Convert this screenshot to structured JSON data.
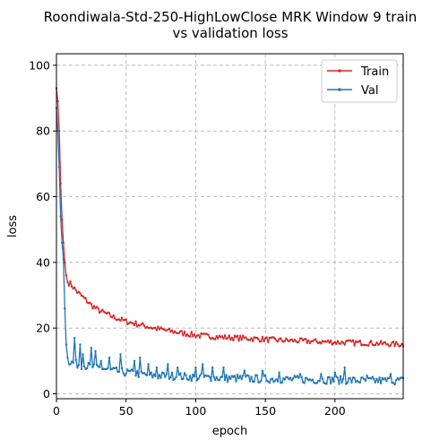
{
  "chart_data": {
    "type": "line",
    "title_line1": "Roondiwala-Std-250-HighLowClose MRK Window 9 train",
    "title_line2": "vs validation loss",
    "xlabel": "epoch",
    "ylabel": "loss",
    "xlim": [
      0,
      249
    ],
    "ylim": [
      -1.5,
      103.5
    ],
    "xticks": [
      0,
      50,
      100,
      150,
      200
    ],
    "yticks": [
      0,
      20,
      40,
      60,
      80,
      100
    ],
    "grid": true,
    "legend_position": "top-right",
    "series": [
      {
        "name": "Train",
        "color": "#d62728",
        "anchors": [
          [
            0,
            93
          ],
          [
            1,
            89
          ],
          [
            2,
            80
          ],
          [
            3,
            64
          ],
          [
            4,
            53
          ],
          [
            5,
            46
          ],
          [
            6,
            40
          ],
          [
            7,
            36
          ],
          [
            8,
            34
          ],
          [
            10,
            33.5
          ],
          [
            15,
            31
          ],
          [
            20,
            29
          ],
          [
            25,
            27
          ],
          [
            30,
            25.5
          ],
          [
            40,
            23.5
          ],
          [
            50,
            22
          ],
          [
            60,
            21
          ],
          [
            70,
            20
          ],
          [
            80,
            19.2
          ],
          [
            90,
            18.5
          ],
          [
            100,
            17.8
          ],
          [
            120,
            17.2
          ],
          [
            140,
            16.8
          ],
          [
            160,
            16.3
          ],
          [
            180,
            16
          ],
          [
            200,
            15.7
          ],
          [
            220,
            15.5
          ],
          [
            249,
            15
          ]
        ],
        "noise": 0.8
      },
      {
        "name": "Val",
        "color": "#1f77b4",
        "anchors": [
          [
            0,
            87
          ],
          [
            1,
            80
          ],
          [
            2,
            69
          ],
          [
            3,
            54
          ],
          [
            4,
            46
          ],
          [
            5,
            41
          ],
          [
            6,
            26
          ],
          [
            7,
            15
          ],
          [
            8,
            11
          ],
          [
            9,
            10
          ],
          [
            10,
            9.5
          ],
          [
            15,
            9
          ],
          [
            20,
            8.5
          ],
          [
            30,
            8
          ],
          [
            40,
            7
          ],
          [
            50,
            6.5
          ],
          [
            60,
            6
          ],
          [
            70,
            5.5
          ],
          [
            80,
            5.5
          ],
          [
            100,
            5
          ],
          [
            120,
            4.8
          ],
          [
            150,
            4.5
          ],
          [
            180,
            4.3
          ],
          [
            200,
            4.2
          ],
          [
            220,
            4
          ],
          [
            249,
            4
          ]
        ],
        "noise": 1.2,
        "spikes": [
          [
            13,
            17
          ],
          [
            17,
            15
          ],
          [
            19,
            12
          ],
          [
            25,
            14
          ],
          [
            28,
            13
          ],
          [
            32,
            10
          ],
          [
            38,
            11
          ],
          [
            46,
            12
          ],
          [
            56,
            10
          ],
          [
            60,
            11
          ],
          [
            66,
            9
          ],
          [
            72,
            8
          ],
          [
            80,
            9
          ],
          [
            87,
            8
          ],
          [
            100,
            8
          ],
          [
            105,
            9
          ],
          [
            112,
            8
          ],
          [
            120,
            8
          ],
          [
            135,
            7
          ],
          [
            148,
            7
          ],
          [
            160,
            6.5
          ],
          [
            175,
            6
          ],
          [
            190,
            6
          ],
          [
            200,
            6.5
          ],
          [
            207,
            8
          ],
          [
            223,
            5.5
          ],
          [
            240,
            6
          ]
        ]
      }
    ]
  }
}
